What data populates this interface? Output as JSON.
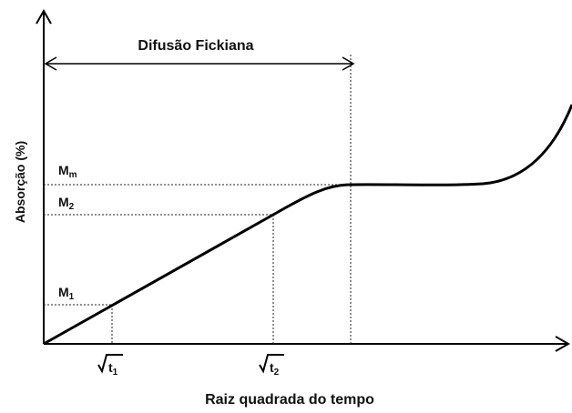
{
  "title": "Difusão Fickiana",
  "y_axis_label": "Absorção (%)",
  "x_axis_label": "Raiz quadrada do tempo",
  "y_labels": [
    {
      "base": "M",
      "sub": "m"
    },
    {
      "base": "M",
      "sub": "2"
    },
    {
      "base": "M",
      "sub": "1"
    }
  ],
  "x_labels": [
    {
      "base": "t",
      "sub": "1"
    },
    {
      "base": "t",
      "sub": "2"
    }
  ]
}
